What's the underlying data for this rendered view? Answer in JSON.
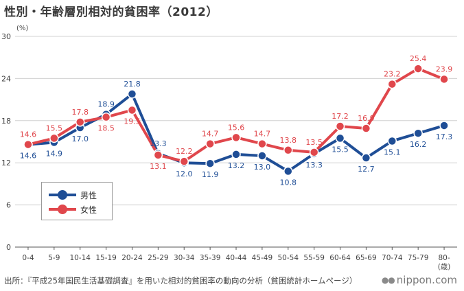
{
  "page": {
    "title": "性別・年齢層別相対的貧困率（2012）",
    "source": "出所：『平成25年国民生活基礎調査』を用いた相対的貧困率の動向の分析（貧困統計ホームページ）",
    "brand_dots": "●●",
    "brand": "nippon.com"
  },
  "chart_data": {
    "type": "line",
    "title": "性別・年齢層別相対的貧困率（2012）",
    "ylabel": "(%)",
    "xlabel": "",
    "ylim": [
      0,
      30
    ],
    "yticks": [
      0,
      6,
      12,
      18,
      24,
      30
    ],
    "grid": true,
    "legend_position": "bottom-left",
    "categories": [
      "0-4",
      "5-9",
      "10-14",
      "15-19",
      "20-24",
      "25-29",
      "30-34",
      "35-39",
      "40-44",
      "45-49",
      "50-54",
      "55-59",
      "60-64",
      "65-69",
      "70-74",
      "75-79",
      "80-"
    ],
    "last_category_suffix": "(歳)",
    "series": [
      {
        "name": "男性",
        "color": "#1f4e96",
        "values": [
          14.6,
          14.9,
          17.0,
          18.9,
          21.8,
          13.3,
          12.0,
          11.9,
          13.2,
          13.0,
          10.8,
          13.3,
          15.5,
          12.7,
          15.1,
          16.2,
          17.3
        ]
      },
      {
        "name": "女性",
        "color": "#e0474c",
        "values": [
          14.6,
          15.5,
          17.8,
          18.5,
          19.5,
          13.1,
          12.2,
          14.7,
          15.6,
          14.7,
          13.8,
          13.5,
          17.2,
          16.9,
          23.2,
          25.4,
          23.9
        ]
      }
    ]
  }
}
